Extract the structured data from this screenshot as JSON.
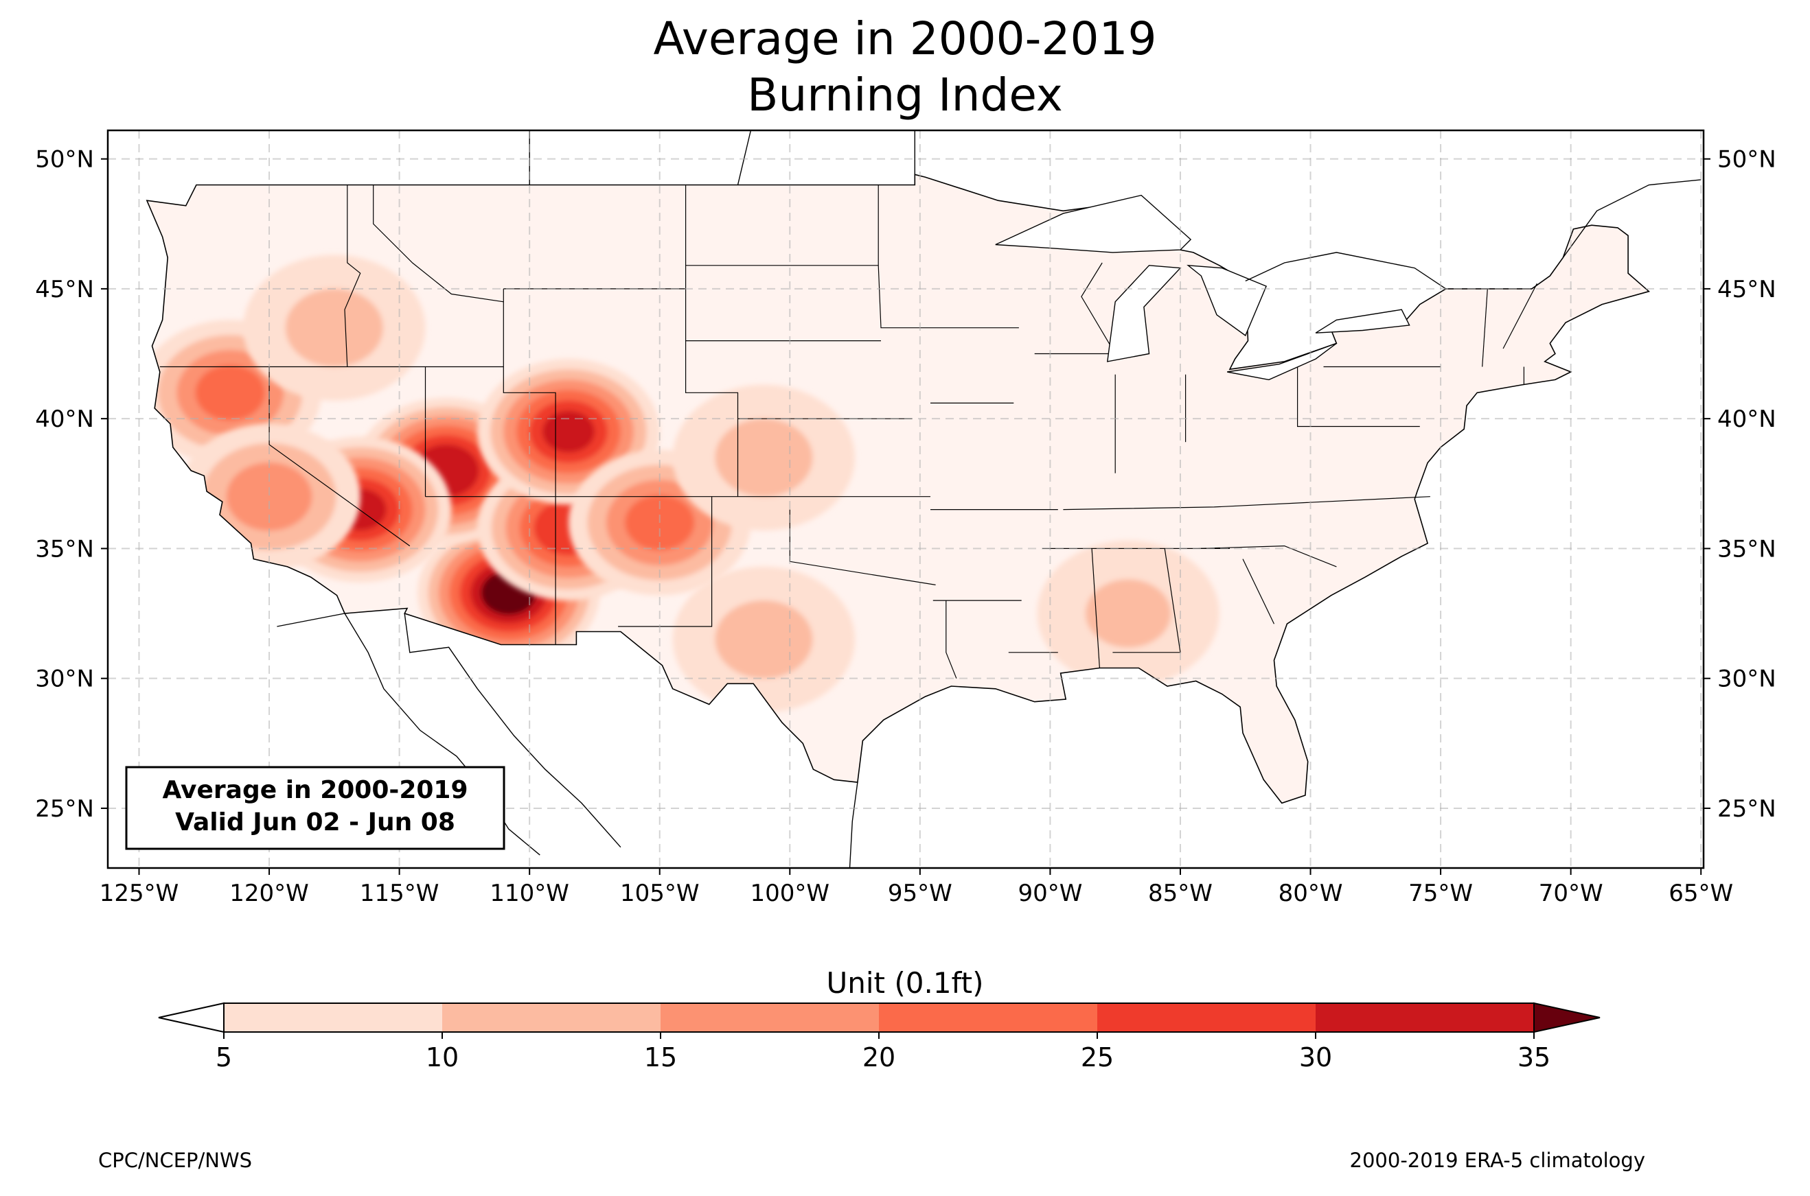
{
  "title": {
    "line1": "Average in 2000-2019",
    "line2": "Burning Index"
  },
  "inset_label": {
    "line1": "Average in 2000-2019",
    "line2": "Valid Jun 02 - Jun 08"
  },
  "map": {
    "projection": "PlateCarree",
    "lon_range": [
      -126.2,
      -64.9
    ],
    "lat_range": [
      22.7,
      51.1
    ],
    "gridlines": true,
    "lon_ticks": [
      {
        "lon": -125,
        "label": "125°W"
      },
      {
        "lon": -120,
        "label": "120°W"
      },
      {
        "lon": -115,
        "label": "115°W"
      },
      {
        "lon": -110,
        "label": "110°W"
      },
      {
        "lon": -105,
        "label": "105°W"
      },
      {
        "lon": -100,
        "label": "100°W"
      },
      {
        "lon": -95,
        "label": "95°W"
      },
      {
        "lon": -90,
        "label": "90°W"
      },
      {
        "lon": -85,
        "label": "85°W"
      },
      {
        "lon": -80,
        "label": "80°W"
      },
      {
        "lon": -75,
        "label": "75°W"
      },
      {
        "lon": -70,
        "label": "70°W"
      },
      {
        "lon": -65,
        "label": "65°W"
      }
    ],
    "lat_ticks": [
      {
        "lat": 50,
        "label": "50°N"
      },
      {
        "lat": 45,
        "label": "45°N"
      },
      {
        "lat": 40,
        "label": "40°N"
      },
      {
        "lat": 35,
        "label": "35°N"
      },
      {
        "lat": 30,
        "label": "30°N"
      },
      {
        "lat": 25,
        "label": "25°N"
      }
    ],
    "hotspots": [
      {
        "region": "Southern Arizona",
        "lon": -110.8,
        "lat": 33.3,
        "value": 36
      },
      {
        "region": "Utah / Nevada border",
        "lon": -113.2,
        "lat": 38.0,
        "value": 33
      },
      {
        "region": "Southern Nevada",
        "lon": -116.5,
        "lat": 36.5,
        "value": 30
      },
      {
        "region": "Northwest New Mexico",
        "lon": -108.5,
        "lat": 35.8,
        "value": 28
      },
      {
        "region": "Western Colorado",
        "lon": -108.5,
        "lat": 39.5,
        "value": 30
      },
      {
        "region": "Northern California",
        "lon": -121.5,
        "lat": 41.0,
        "value": 22
      },
      {
        "region": "Central California",
        "lon": -120.0,
        "lat": 37.0,
        "value": 18
      },
      {
        "region": "Eastern New Mexico",
        "lon": -105.0,
        "lat": 36.0,
        "value": 22
      },
      {
        "region": "Western Kansas",
        "lon": -101.0,
        "lat": 38.5,
        "value": 12
      },
      {
        "region": "Southeast US",
        "lon": -87.0,
        "lat": 32.5,
        "value": 11
      },
      {
        "region": "West Texas",
        "lon": -101.0,
        "lat": 31.5,
        "value": 12
      },
      {
        "region": "Great Basin / Oregon",
        "lon": -117.5,
        "lat": 43.5,
        "value": 12
      }
    ]
  },
  "colorbar": {
    "title": "Unit (0.1ft)",
    "levels": [
      5,
      10,
      15,
      20,
      25,
      30,
      35
    ],
    "tick_labels": [
      "5",
      "10",
      "15",
      "20",
      "25",
      "30",
      "35"
    ],
    "colors": [
      "#fee0d2",
      "#fcbba1",
      "#fc9272",
      "#fb6a4a",
      "#ef3b2c",
      "#cb181d",
      "#a50f15"
    ],
    "under_color": "#ffffff",
    "over_color": "#67000d"
  },
  "footer": {
    "left": "CPC/NCEP/NWS",
    "right": "2000-2019 ERA-5 climatology"
  }
}
